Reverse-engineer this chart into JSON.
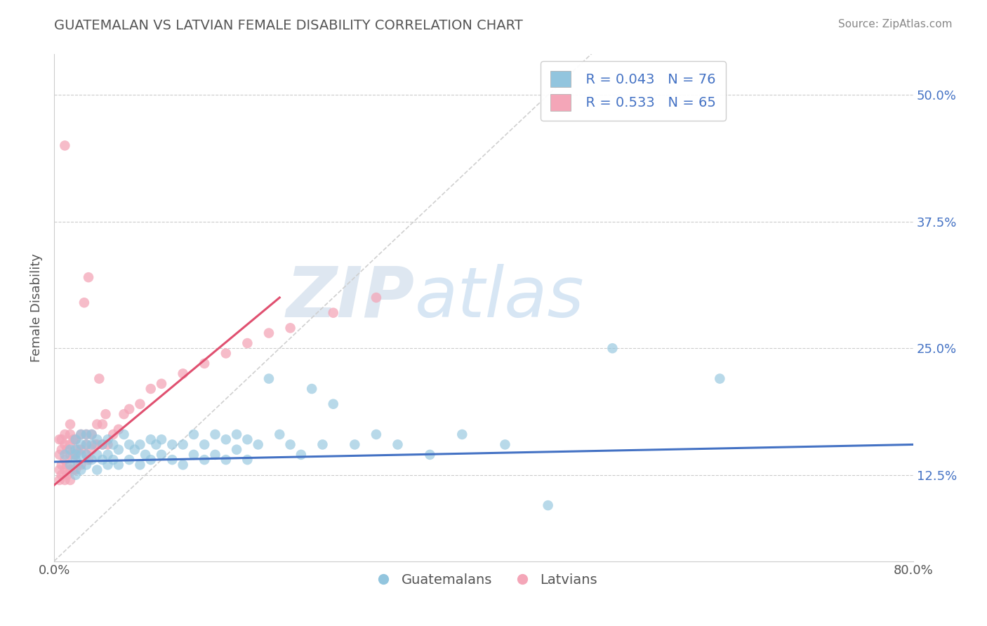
{
  "title": "GUATEMALAN VS LATVIAN FEMALE DISABILITY CORRELATION CHART",
  "source": "Source: ZipAtlas.com",
  "ylabel": "Female Disability",
  "legend_label_blue": "Guatemalans",
  "legend_label_pink": "Latvians",
  "legend_r_blue": "R = 0.043",
  "legend_n_blue": "N = 76",
  "legend_r_pink": "R = 0.533",
  "legend_n_pink": "N = 65",
  "xlim": [
    0.0,
    0.8
  ],
  "ylim": [
    0.04,
    0.54
  ],
  "xtick_labels": [
    "0.0%",
    "80.0%"
  ],
  "ytick_labels": [
    "12.5%",
    "25.0%",
    "37.5%",
    "50.0%"
  ],
  "ytick_values": [
    0.125,
    0.25,
    0.375,
    0.5
  ],
  "color_blue": "#92c5de",
  "color_pink": "#f4a6b8",
  "trendline_blue": "#4472c4",
  "trendline_pink": "#e05070",
  "trendline_diagonal_color": "#d0d0d0",
  "background_color": "#ffffff",
  "watermark_zip": "ZIP",
  "watermark_atlas": "atlas",
  "blue_points_x": [
    0.01,
    0.015,
    0.015,
    0.02,
    0.02,
    0.02,
    0.02,
    0.02,
    0.025,
    0.025,
    0.025,
    0.025,
    0.03,
    0.03,
    0.03,
    0.03,
    0.035,
    0.035,
    0.035,
    0.04,
    0.04,
    0.04,
    0.045,
    0.045,
    0.05,
    0.05,
    0.05,
    0.055,
    0.055,
    0.06,
    0.06,
    0.065,
    0.07,
    0.07,
    0.075,
    0.08,
    0.08,
    0.085,
    0.09,
    0.09,
    0.095,
    0.1,
    0.1,
    0.11,
    0.11,
    0.12,
    0.12,
    0.13,
    0.13,
    0.14,
    0.14,
    0.15,
    0.15,
    0.16,
    0.16,
    0.17,
    0.17,
    0.18,
    0.18,
    0.19,
    0.2,
    0.21,
    0.22,
    0.23,
    0.24,
    0.25,
    0.26,
    0.28,
    0.3,
    0.32,
    0.35,
    0.38,
    0.42,
    0.46,
    0.52,
    0.62
  ],
  "blue_points_y": [
    0.145,
    0.135,
    0.15,
    0.125,
    0.14,
    0.15,
    0.16,
    0.145,
    0.13,
    0.145,
    0.155,
    0.165,
    0.135,
    0.145,
    0.155,
    0.165,
    0.14,
    0.155,
    0.165,
    0.13,
    0.145,
    0.16,
    0.14,
    0.155,
    0.135,
    0.145,
    0.16,
    0.14,
    0.155,
    0.135,
    0.15,
    0.165,
    0.14,
    0.155,
    0.15,
    0.135,
    0.155,
    0.145,
    0.14,
    0.16,
    0.155,
    0.145,
    0.16,
    0.14,
    0.155,
    0.135,
    0.155,
    0.145,
    0.165,
    0.14,
    0.155,
    0.145,
    0.165,
    0.14,
    0.16,
    0.15,
    0.165,
    0.14,
    0.16,
    0.155,
    0.22,
    0.165,
    0.155,
    0.145,
    0.21,
    0.155,
    0.195,
    0.155,
    0.165,
    0.155,
    0.145,
    0.165,
    0.155,
    0.095,
    0.25,
    0.22
  ],
  "pink_points_x": [
    0.005,
    0.005,
    0.005,
    0.005,
    0.007,
    0.007,
    0.007,
    0.007,
    0.01,
    0.01,
    0.01,
    0.01,
    0.01,
    0.01,
    0.012,
    0.012,
    0.012,
    0.015,
    0.015,
    0.015,
    0.015,
    0.015,
    0.015,
    0.018,
    0.018,
    0.018,
    0.02,
    0.02,
    0.02,
    0.022,
    0.022,
    0.025,
    0.025,
    0.025,
    0.028,
    0.03,
    0.03,
    0.03,
    0.032,
    0.032,
    0.035,
    0.035,
    0.038,
    0.04,
    0.04,
    0.042,
    0.045,
    0.045,
    0.048,
    0.05,
    0.055,
    0.06,
    0.065,
    0.07,
    0.08,
    0.09,
    0.1,
    0.12,
    0.14,
    0.16,
    0.18,
    0.2,
    0.22,
    0.26,
    0.3
  ],
  "pink_points_y": [
    0.12,
    0.13,
    0.145,
    0.16,
    0.125,
    0.135,
    0.15,
    0.16,
    0.12,
    0.13,
    0.14,
    0.155,
    0.165,
    0.45,
    0.125,
    0.135,
    0.15,
    0.12,
    0.13,
    0.145,
    0.155,
    0.165,
    0.175,
    0.13,
    0.145,
    0.16,
    0.13,
    0.145,
    0.16,
    0.135,
    0.15,
    0.135,
    0.15,
    0.165,
    0.295,
    0.145,
    0.155,
    0.165,
    0.14,
    0.32,
    0.15,
    0.165,
    0.155,
    0.155,
    0.175,
    0.22,
    0.155,
    0.175,
    0.185,
    0.155,
    0.165,
    0.17,
    0.185,
    0.19,
    0.195,
    0.21,
    0.215,
    0.225,
    0.235,
    0.245,
    0.255,
    0.265,
    0.27,
    0.285,
    0.3
  ],
  "pink_trendline_x": [
    0.0,
    0.21
  ],
  "pink_trendline_y": [
    0.115,
    0.3
  ],
  "blue_trendline_x": [
    0.0,
    0.8
  ],
  "blue_trendline_y": [
    0.138,
    0.155
  ]
}
